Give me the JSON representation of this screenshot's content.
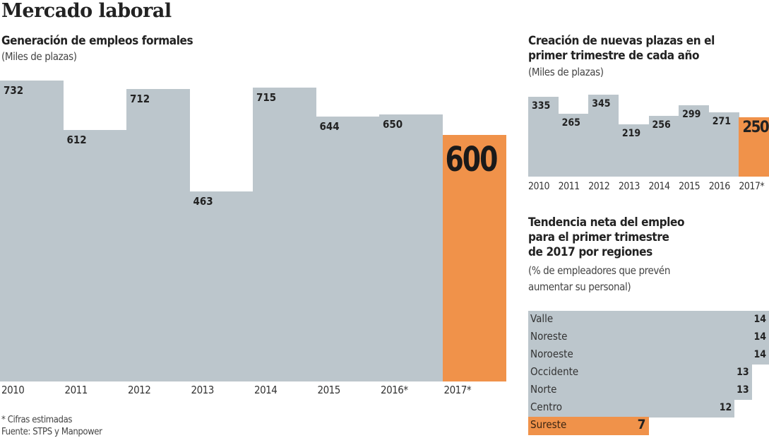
{
  "title": "Mercado laboral",
  "colors": {
    "bar": "#bcc6cc",
    "highlight": "#f0924a"
  },
  "chart_data": [
    {
      "type": "bar",
      "title": "Generación de empleos formales",
      "subtitle": "(Miles de plazas)",
      "categories": [
        "2010",
        "2011",
        "2012",
        "2013",
        "2014",
        "2015",
        "2016*",
        "2017*"
      ],
      "values": [
        732,
        612,
        712,
        463,
        715,
        644,
        650,
        600
      ],
      "highlight": "2017*",
      "ylim": [
        0,
        732
      ],
      "grid": false
    },
    {
      "type": "bar",
      "title": "Creación de nuevas plazas en el primer trimestre de cada año",
      "title_lines": [
        "Creación de nuevas plazas en el",
        "primer trimestre de cada año"
      ],
      "subtitle": "(Miles de plazas)",
      "categories": [
        "2010",
        "2011",
        "2012",
        "2013",
        "2014",
        "2015",
        "2016",
        "2017*"
      ],
      "values": [
        335,
        265,
        345,
        219,
        256,
        299,
        271,
        250
      ],
      "highlight": "2017*",
      "ylim": [
        0,
        345
      ],
      "grid": false
    },
    {
      "type": "bar",
      "orientation": "horizontal",
      "title": "Tendencia neta del empleo para el primer trimestre de 2017 por regiones",
      "title_lines": [
        "Tendencia neta del empleo",
        "para el primer trimestre",
        "de 2017 por regiones"
      ],
      "subtitle_lines": [
        "(% de empleadores que prevén",
        "aumentar su personal)"
      ],
      "categories": [
        "Valle",
        "Noreste",
        "Noroeste",
        "Occidente",
        "Norte",
        "Centro",
        "Sureste"
      ],
      "values": [
        14,
        14,
        14,
        13,
        13,
        12,
        7
      ],
      "highlight": "Sureste",
      "xlim": [
        0,
        14
      ],
      "grid": false
    }
  ],
  "notes": [
    "* Cifras estimadas",
    "Fuente: STPS y Manpower"
  ]
}
